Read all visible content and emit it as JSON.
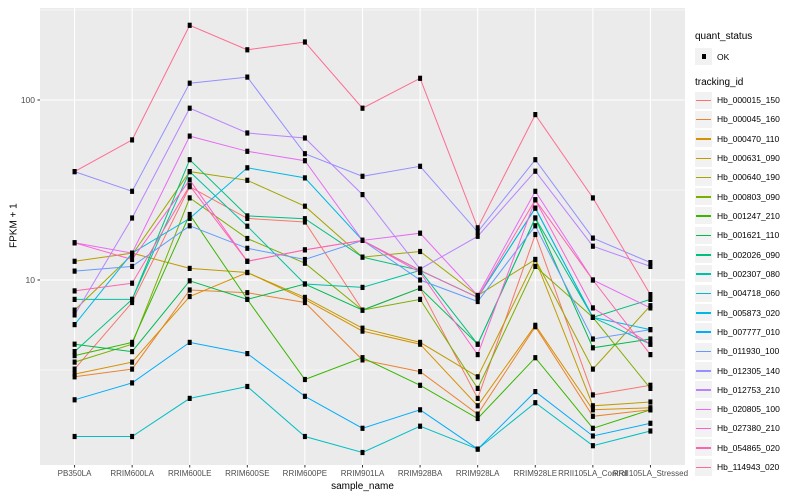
{
  "chart_data": {
    "type": "line",
    "title": "",
    "xlabel": "sample_name",
    "ylabel": "FPKM + 1",
    "y_scale": "log10",
    "y_tick_labels": [
      "100",
      "10"
    ],
    "y_tick_values": [
      100,
      10
    ],
    "y_minor_values": [
      3.1623,
      31.623,
      316.23
    ],
    "ylim": [
      0.94,
      324
    ],
    "grid": "on",
    "panel_color": "#EBEBEB",
    "grid_color": "#FFFFFF",
    "tick_label_color": "#4D4D4D",
    "marker_color": "#000000",
    "legend_position": "right",
    "categories": [
      "PB350LA",
      "RRIM600LA",
      "RRIM600LE",
      "RRIM600SE",
      "RRIM600PE",
      "RRIM901LA",
      "RRIM928BA",
      "RRIM928LA",
      "RRIM928LE",
      "RRII105LA_Control",
      "RRII105LA_Stressed"
    ],
    "legend": {
      "quant_title": "quant_status",
      "quant_items": [
        {
          "label": "OK",
          "marker": "square-point"
        }
      ],
      "series_title": "tracking_id"
    },
    "series": [
      {
        "name": "Hb_000015_150",
        "color": "#F8766D",
        "values": [
          3.2,
          7.5,
          33,
          22,
          21,
          6.8,
          9.0,
          2.2,
          17.9,
          2.3,
          2.6
        ]
      },
      {
        "name": "Hb_000045_160",
        "color": "#EA8331",
        "values": [
          2.9,
          3.2,
          8.8,
          8.5,
          7.5,
          3.6,
          3.1,
          1.8,
          5.5,
          1.75,
          1.9
        ]
      },
      {
        "name": "Hb_000470_110",
        "color": "#D89000",
        "values": [
          3.0,
          3.5,
          8.1,
          11.0,
          7.8,
          5.2,
          4.4,
          2.0,
          5.6,
          1.9,
          1.95
        ]
      },
      {
        "name": "Hb_000631_090",
        "color": "#C09B00",
        "values": [
          12.7,
          14.1,
          11.6,
          11.0,
          8.0,
          5.4,
          4.5,
          2.9,
          13.0,
          2.0,
          2.1
        ]
      },
      {
        "name": "Hb_000640_190",
        "color": "#A3A500",
        "values": [
          6.8,
          13.8,
          40,
          35.8,
          25.7,
          13.4,
          14.4,
          8.2,
          13.0,
          3.2,
          7.2
        ]
      },
      {
        "name": "Hb_000803_090",
        "color": "#7CAE00",
        "values": [
          3.5,
          4.4,
          28.6,
          17.0,
          12.4,
          6.8,
          7.8,
          2.5,
          11.9,
          6.2,
          2.5
        ]
      },
      {
        "name": "Hb_001247_210",
        "color": "#39B600",
        "values": [
          3.8,
          4.5,
          23.1,
          7.8,
          2.8,
          3.7,
          2.6,
          1.7,
          3.7,
          1.5,
          1.9
        ]
      },
      {
        "name": "Hb_001621_110",
        "color": "#00BB4E",
        "values": [
          4.4,
          4.0,
          9.9,
          7.8,
          9.5,
          6.8,
          9.0,
          4.4,
          22.1,
          4.2,
          4.7
        ]
      },
      {
        "name": "Hb_002026_090",
        "color": "#00BF7D",
        "values": [
          4.0,
          7.8,
          46.6,
          22.7,
          21.9,
          13.4,
          11.3,
          4.4,
          22.1,
          6.2,
          7.8
        ]
      },
      {
        "name": "Hb_002307_080",
        "color": "#00C1A3",
        "values": [
          7.8,
          7.8,
          40,
          19.9,
          9.5,
          9.1,
          11.3,
          8.0,
          25.1,
          6.2,
          4.4
        ]
      },
      {
        "name": "Hb_004718_060",
        "color": "#00BFC4",
        "values": [
          1.35,
          1.35,
          2.2,
          2.56,
          1.35,
          1.1,
          1.54,
          1.15,
          2.08,
          1.2,
          1.45
        ]
      },
      {
        "name": "Hb_005873_020",
        "color": "#00B8E7",
        "values": [
          5.65,
          14.1,
          22.0,
          42.0,
          36.9,
          16.6,
          11.3,
          8.0,
          25.1,
          6.2,
          5.3
        ]
      },
      {
        "name": "Hb_007777_010",
        "color": "#00ACFC",
        "values": [
          2.16,
          2.68,
          4.5,
          3.9,
          2.26,
          1.5,
          1.9,
          1.15,
          2.4,
          1.36,
          1.6
        ]
      },
      {
        "name": "Hb_011930_100",
        "color": "#619CFF",
        "values": [
          11.2,
          11.9,
          20,
          15,
          13,
          16.6,
          10,
          7.6,
          20,
          4.7,
          5.3
        ]
      },
      {
        "name": "Hb_012305_140",
        "color": "#9590FF",
        "values": [
          40,
          31.1,
          124,
          134,
          50.3,
          37.7,
          42.8,
          18.5,
          46.6,
          17.1,
          12.5
        ]
      },
      {
        "name": "Hb_012753_210",
        "color": "#B983FF",
        "values": [
          6.4,
          22.1,
          90,
          65.6,
          61.5,
          29.8,
          11.5,
          17.5,
          40.2,
          15.4,
          11.9
        ]
      },
      {
        "name": "Hb_020805_100",
        "color": "#E76BF3",
        "values": [
          16.1,
          14.1,
          63,
          51.9,
          46,
          16.6,
          18.2,
          8.2,
          31.1,
          10.0,
          7.0
        ]
      },
      {
        "name": "Hb_027380_210",
        "color": "#FD61D1",
        "values": [
          16.1,
          13.0,
          36,
          12.7,
          14.7,
          16.6,
          11.0,
          3.85,
          27.9,
          7.0,
          4.4
        ]
      },
      {
        "name": "Hb_054865_020",
        "color": "#FF65AC",
        "values": [
          8.7,
          9.6,
          33.4,
          12.7,
          14.7,
          16.6,
          11.3,
          8.0,
          27.9,
          10.0,
          3.85
        ]
      },
      {
        "name": "Hb_114943_020",
        "color": "#FF6C91",
        "values": [
          40,
          60,
          260,
          190,
          210,
          90,
          132,
          19.5,
          83,
          28.6,
          8.3
        ]
      }
    ]
  }
}
